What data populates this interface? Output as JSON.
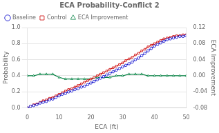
{
  "chart_data": {
    "type": "line",
    "title": "ECA Probability-Conflict 2",
    "xlabel": "ECA (ft)",
    "ylabel": "Probability",
    "y2label": "ECA Improvement",
    "xlim": [
      0,
      50
    ],
    "xticks": [
      0,
      10,
      20,
      30,
      40,
      50
    ],
    "ylim": [
      0.0,
      1.0
    ],
    "yticks": [
      {
        "value": 0,
        "label": "0.0"
      },
      0.2,
      0.4,
      0.6,
      0.8,
      {
        "value": 1,
        "label": "1.0"
      }
    ],
    "y2lim": [
      -0.08,
      0.12
    ],
    "y2ticks": [
      -0.08,
      -0.04,
      {
        "value": 0,
        "label": "0.00"
      },
      0.04,
      0.08,
      0.12
    ],
    "grid": "y",
    "legend": "upper left",
    "series": [
      {
        "name": "Baseline",
        "color": "#0000cc",
        "marker": "circle",
        "line_style": "solid",
        "x": [
          0,
          1,
          2,
          3,
          4,
          5,
          6,
          7,
          8,
          9,
          10,
          11,
          12,
          13,
          14,
          15,
          16,
          17,
          18,
          19,
          20,
          21,
          22,
          23,
          24,
          25,
          26,
          27,
          28,
          29,
          30,
          31,
          32,
          33,
          34,
          35,
          36,
          37,
          38,
          39,
          40,
          41,
          42,
          43,
          44,
          45,
          46,
          47,
          48,
          49,
          50
        ],
        "values": [
          0.0,
          0.02,
          0.03,
          0.04,
          0.06,
          0.07,
          0.08,
          0.1,
          0.11,
          0.13,
          0.15,
          0.17,
          0.18,
          0.2,
          0.21,
          0.23,
          0.24,
          0.26,
          0.27,
          0.29,
          0.31,
          0.33,
          0.35,
          0.37,
          0.39,
          0.41,
          0.43,
          0.45,
          0.47,
          0.49,
          0.51,
          0.53,
          0.55,
          0.57,
          0.6,
          0.62,
          0.65,
          0.68,
          0.71,
          0.74,
          0.77,
          0.79,
          0.81,
          0.83,
          0.85,
          0.86,
          0.87,
          0.88,
          0.89,
          0.89,
          0.9
        ]
      },
      {
        "name": "Control",
        "color": "#cc0000",
        "marker": "square",
        "line_style": "solid",
        "x": [
          0,
          1,
          2,
          3,
          4,
          5,
          6,
          7,
          8,
          9,
          10,
          11,
          12,
          13,
          14,
          15,
          16,
          17,
          18,
          19,
          20,
          21,
          22,
          23,
          24,
          25,
          26,
          27,
          28,
          29,
          30,
          31,
          32,
          33,
          34,
          35,
          36,
          37,
          38,
          39,
          40,
          41,
          42,
          43,
          44,
          45,
          46,
          47,
          48,
          49,
          50
        ],
        "values": [
          0.0,
          0.02,
          0.04,
          0.05,
          0.07,
          0.09,
          0.1,
          0.12,
          0.13,
          0.15,
          0.17,
          0.19,
          0.21,
          0.23,
          0.24,
          0.26,
          0.28,
          0.3,
          0.32,
          0.34,
          0.36,
          0.38,
          0.4,
          0.42,
          0.44,
          0.46,
          0.48,
          0.5,
          0.52,
          0.54,
          0.56,
          0.59,
          0.61,
          0.63,
          0.66,
          0.68,
          0.71,
          0.73,
          0.76,
          0.78,
          0.8,
          0.82,
          0.84,
          0.86,
          0.87,
          0.88,
          0.89,
          0.9,
          0.9,
          0.91,
          0.91
        ]
      },
      {
        "name": "ECA Improvement",
        "color": "#008040",
        "marker": "triangle",
        "line_style": "solid",
        "axis": "y2",
        "x": [
          0,
          2,
          4,
          6,
          8,
          10,
          12,
          14,
          16,
          18,
          20,
          22,
          24,
          26,
          28,
          30,
          32,
          34,
          36,
          38,
          40,
          42,
          44,
          46,
          48,
          50
        ],
        "values": [
          0.0,
          0.0,
          0.004,
          0.004,
          0.004,
          -0.004,
          -0.008,
          -0.008,
          -0.008,
          -0.008,
          -0.008,
          -0.004,
          -0.004,
          -0.004,
          0.0,
          0.0,
          0.004,
          0.004,
          0.004,
          0.0,
          0.0,
          0.0,
          0.0,
          0.0,
          0.0,
          0.0
        ]
      }
    ]
  }
}
